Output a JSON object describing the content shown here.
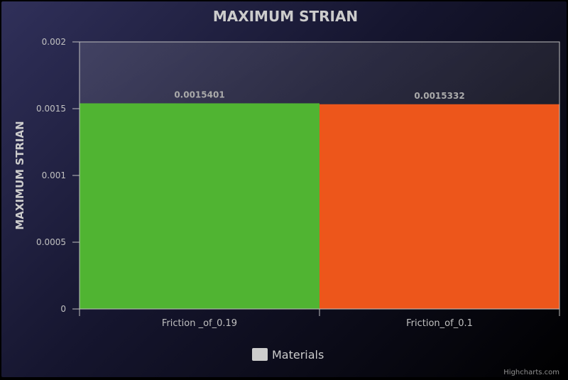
{
  "chart_data": {
    "type": "bar",
    "title": "MAXIMUM STRIAN",
    "xlabel": "",
    "ylabel": "MAXIMUM STRIAN",
    "categories": [
      "Friction _of_0.19",
      "Friction_of_0.1"
    ],
    "values": [
      0.0015401,
      0.0015332
    ],
    "data_labels": [
      "0.0015401",
      "0.0015332"
    ],
    "bar_colors": [
      "#50b432",
      "#ed561b"
    ],
    "ylim": [
      0,
      0.002
    ],
    "yticks": [
      0,
      0.0005,
      0.001,
      0.0015,
      0.002
    ],
    "ytick_labels": [
      "0",
      "0.0005",
      "0.001",
      "0.0015",
      "0.002"
    ],
    "legend": {
      "entries": [
        "Materials"
      ],
      "placement": "bottom-center",
      "swatch_color": "#cccccc"
    },
    "grid": false,
    "credits": "Highcharts.com"
  },
  "colors": {
    "title": "#cccccc",
    "axis_text": "#c0c0c0",
    "plot_border": "#c0c0c0",
    "data_label": "#aaaaaa"
  }
}
